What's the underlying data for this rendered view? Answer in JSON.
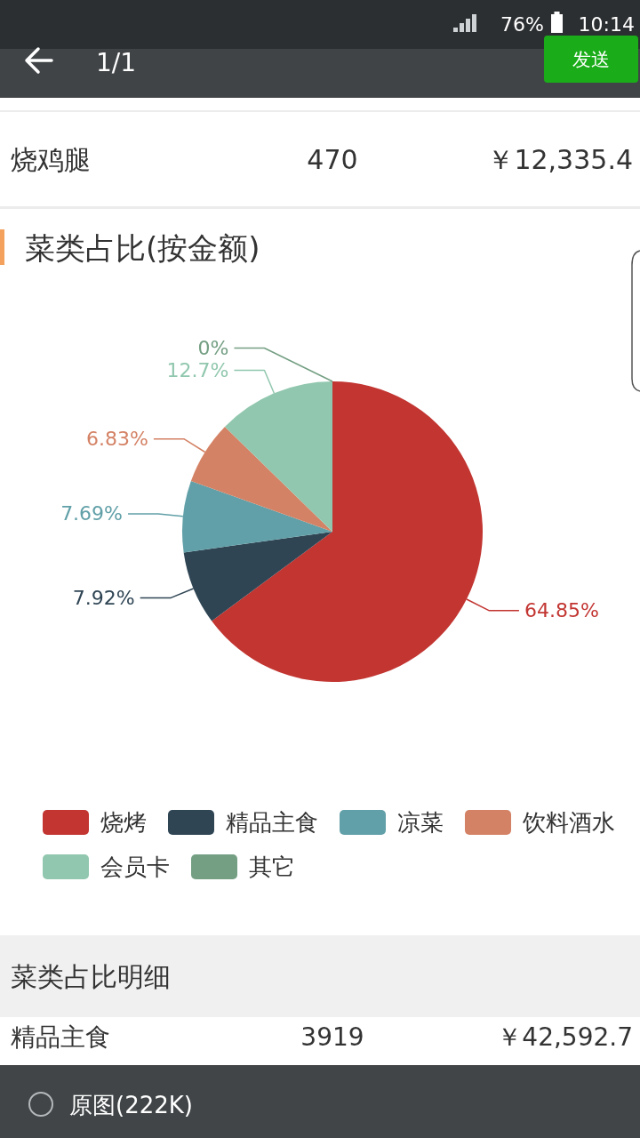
{
  "chart_data": {
    "type": "pie",
    "title": "菜类占比(按金额)",
    "categories": [
      "烧烤",
      "精品主食",
      "凉菜",
      "饮料酒水",
      "会员卡",
      "其它"
    ],
    "values": [
      64.85,
      7.92,
      7.69,
      6.83,
      12.7,
      0
    ],
    "colors": [
      "#c23531",
      "#2f4554",
      "#61a0a8",
      "#d48265",
      "#91c7ae",
      "#749f83"
    ],
    "value_labels": [
      "64.85%",
      "7.92%",
      "7.69%",
      "6.83%",
      "12.7%",
      "0%"
    ],
    "legend": "bottom",
    "annotations": [
      "76%",
      "10:14",
      "1/1",
      "发送",
      "烧鸡腿",
      "470",
      "￥12,335.4",
      "菜类占比明细",
      "精品主食",
      "3919",
      "￥42,592.7",
      "原图(222K)"
    ]
  }
}
